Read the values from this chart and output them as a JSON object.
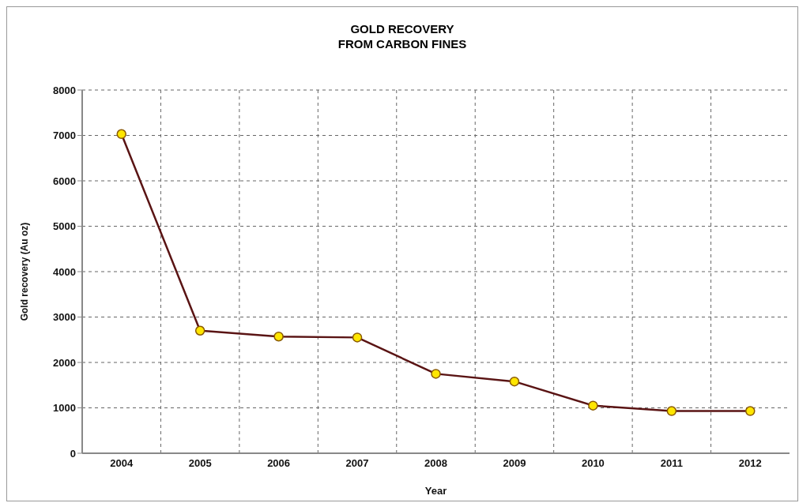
{
  "chart_data": {
    "type": "line",
    "title": "GOLD RECOVERY\nFROM CARBON FINES",
    "xlabel": "Year",
    "ylabel": "Gold recovery (Au oz)",
    "categories": [
      "2004",
      "2005",
      "2006",
      "2007",
      "2008",
      "2009",
      "2010",
      "2011",
      "2012"
    ],
    "series": [
      {
        "color": "#5a1414",
        "values": [
          7030,
          2700,
          2570,
          2550,
          1750,
          1580,
          1050,
          930,
          930
        ]
      }
    ],
    "ylim": [
      0,
      8000
    ],
    "yticks": [
      0,
      1000,
      2000,
      3000,
      4000,
      5000,
      6000,
      7000,
      8000
    ],
    "grid": true,
    "marker": "circle",
    "line_style": "solid"
  }
}
